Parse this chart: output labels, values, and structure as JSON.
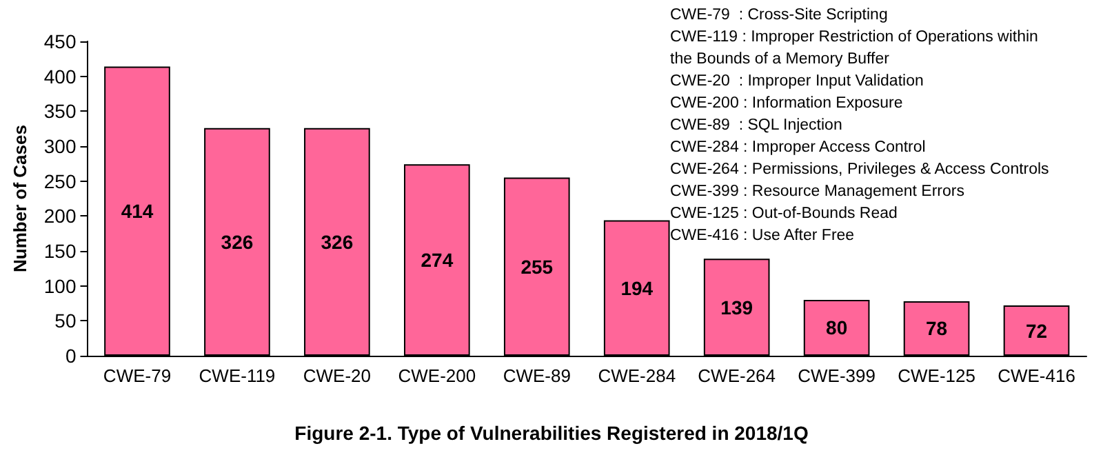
{
  "chart_data": {
    "type": "bar",
    "title": "Figure 2-1. Type of Vulnerabilities Registered in 2018/1Q",
    "ylabel": "Number of Cases",
    "categories": [
      "CWE-79",
      "CWE-119",
      "CWE-20",
      "CWE-200",
      "CWE-89",
      "CWE-284",
      "CWE-264",
      "CWE-399",
      "CWE-125",
      "CWE-416"
    ],
    "values": [
      414,
      326,
      326,
      274,
      255,
      194,
      139,
      80,
      78,
      72
    ],
    "color": "#ff6699",
    "ylim": [
      0,
      450
    ],
    "yticks": [
      0,
      50,
      100,
      150,
      200,
      250,
      300,
      350,
      400,
      450
    ],
    "grid": false,
    "data_labels": true,
    "annotations": [
      "CWE-79  : Cross-Site Scripting",
      "CWE-119 : Improper Restriction of Operations within the Bounds of a Memory Buffer",
      "CWE-20  : Improper Input Validation",
      "CWE-200 : Information Exposure",
      "CWE-89  : SQL Injection",
      "CWE-284 : Improper Access Control",
      "CWE-264 : Permissions, Privileges & Access Controls",
      "CWE-399 : Resource Management Errors",
      "CWE-125 : Out-of-Bounds Read",
      "CWE-416 : Use After Free"
    ]
  }
}
